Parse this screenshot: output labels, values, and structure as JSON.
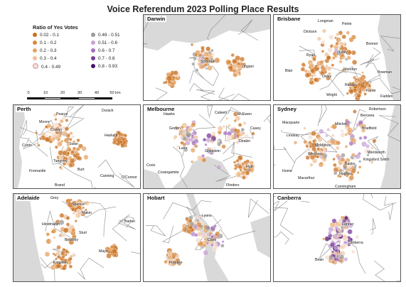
{
  "title": "Voice Referendum 2023 Polling Place Results",
  "legend": {
    "title": "Ratio of Yes Votes",
    "items": [
      {
        "label": "0.02 - 0.1",
        "color": "#c9701f"
      },
      {
        "label": "0.1 - 0.2",
        "color": "#d9883a"
      },
      {
        "label": "0.2 - 0.3",
        "color": "#e5a467"
      },
      {
        "label": "0.3 - 0.4",
        "color": "#efc197"
      },
      {
        "label": "0.4 - 0.49",
        "color": "#f6ded0"
      },
      {
        "label": "0.49 - 0.51",
        "color": "#9a9a9a"
      },
      {
        "label": "0.51 - 0.6",
        "color": "#c7a1d6"
      },
      {
        "label": "0.6 - 0.7",
        "color": "#a66fc0"
      },
      {
        "label": "0.7 - 0.8",
        "color": "#7a3d9a"
      },
      {
        "label": "0.8 - 0.93",
        "color": "#4b0f6e"
      }
    ]
  },
  "scalebar": {
    "ticks": [
      "0",
      "10",
      "20",
      "30",
      "40",
      "50 km"
    ]
  },
  "panels": [
    {
      "name": "Darwin",
      "seed": 11,
      "mix": 0.35,
      "places": [
        "Solomon",
        "Lingiari"
      ]
    },
    {
      "name": "Brisbane",
      "seed": 23,
      "mix": 0.3,
      "places": [
        "Longman",
        "Petrie",
        "Dickson",
        "Bonner",
        "Ryan",
        "Lilley",
        "Blair",
        "Oxley",
        "Rankin",
        "Forde",
        "Wright",
        "Fadden",
        "Moreton",
        "Bowman"
      ]
    },
    {
      "name": "Perth",
      "seed": 37,
      "mix": 0.3,
      "places": [
        "Pearce",
        "Durack",
        "Moore",
        "Cowan",
        "Hasluck",
        "Curtin",
        "Swan",
        "Fremantle",
        "Burt",
        "Tangney",
        "Canning",
        "O'Connor",
        "Brand"
      ]
    },
    {
      "name": "Melbourne",
      "seed": 41,
      "mix": 0.6,
      "places": [
        "Hawke",
        "Calwell",
        "McEwen",
        "Casey",
        "Gorton",
        "Lalor",
        "Goldstein",
        "Corio",
        "Corangamite",
        "Flinders",
        "Holt",
        "Deakin"
      ]
    },
    {
      "name": "Sydney",
      "seed": 53,
      "mix": 0.55,
      "places": [
        "Robertson",
        "Macquarie",
        "Berowra",
        "Mitchell",
        "Lindsay",
        "Bradfield",
        "McMahon",
        "Werriwa",
        "Wentworth",
        "Hume",
        "Macarthur",
        "Kingsford Smith",
        "Hughes",
        "Cunningham",
        "Banks"
      ]
    },
    {
      "name": "Adelaide",
      "seed": 67,
      "mix": 0.3,
      "places": [
        "Grey",
        "Spence",
        "Makin",
        "Hindmarsh",
        "Barker",
        "Sturt",
        "Mayo",
        "Kingston",
        "Boothby"
      ]
    },
    {
      "name": "Hobart",
      "seed": 71,
      "mix": 0.55,
      "places": [
        "Lyons",
        "Clark",
        "Franklin"
      ]
    },
    {
      "name": "Canberra",
      "seed": 83,
      "mix": 0.75,
      "places": [
        "Fenner",
        "Canberra",
        "Bean"
      ]
    }
  ]
}
